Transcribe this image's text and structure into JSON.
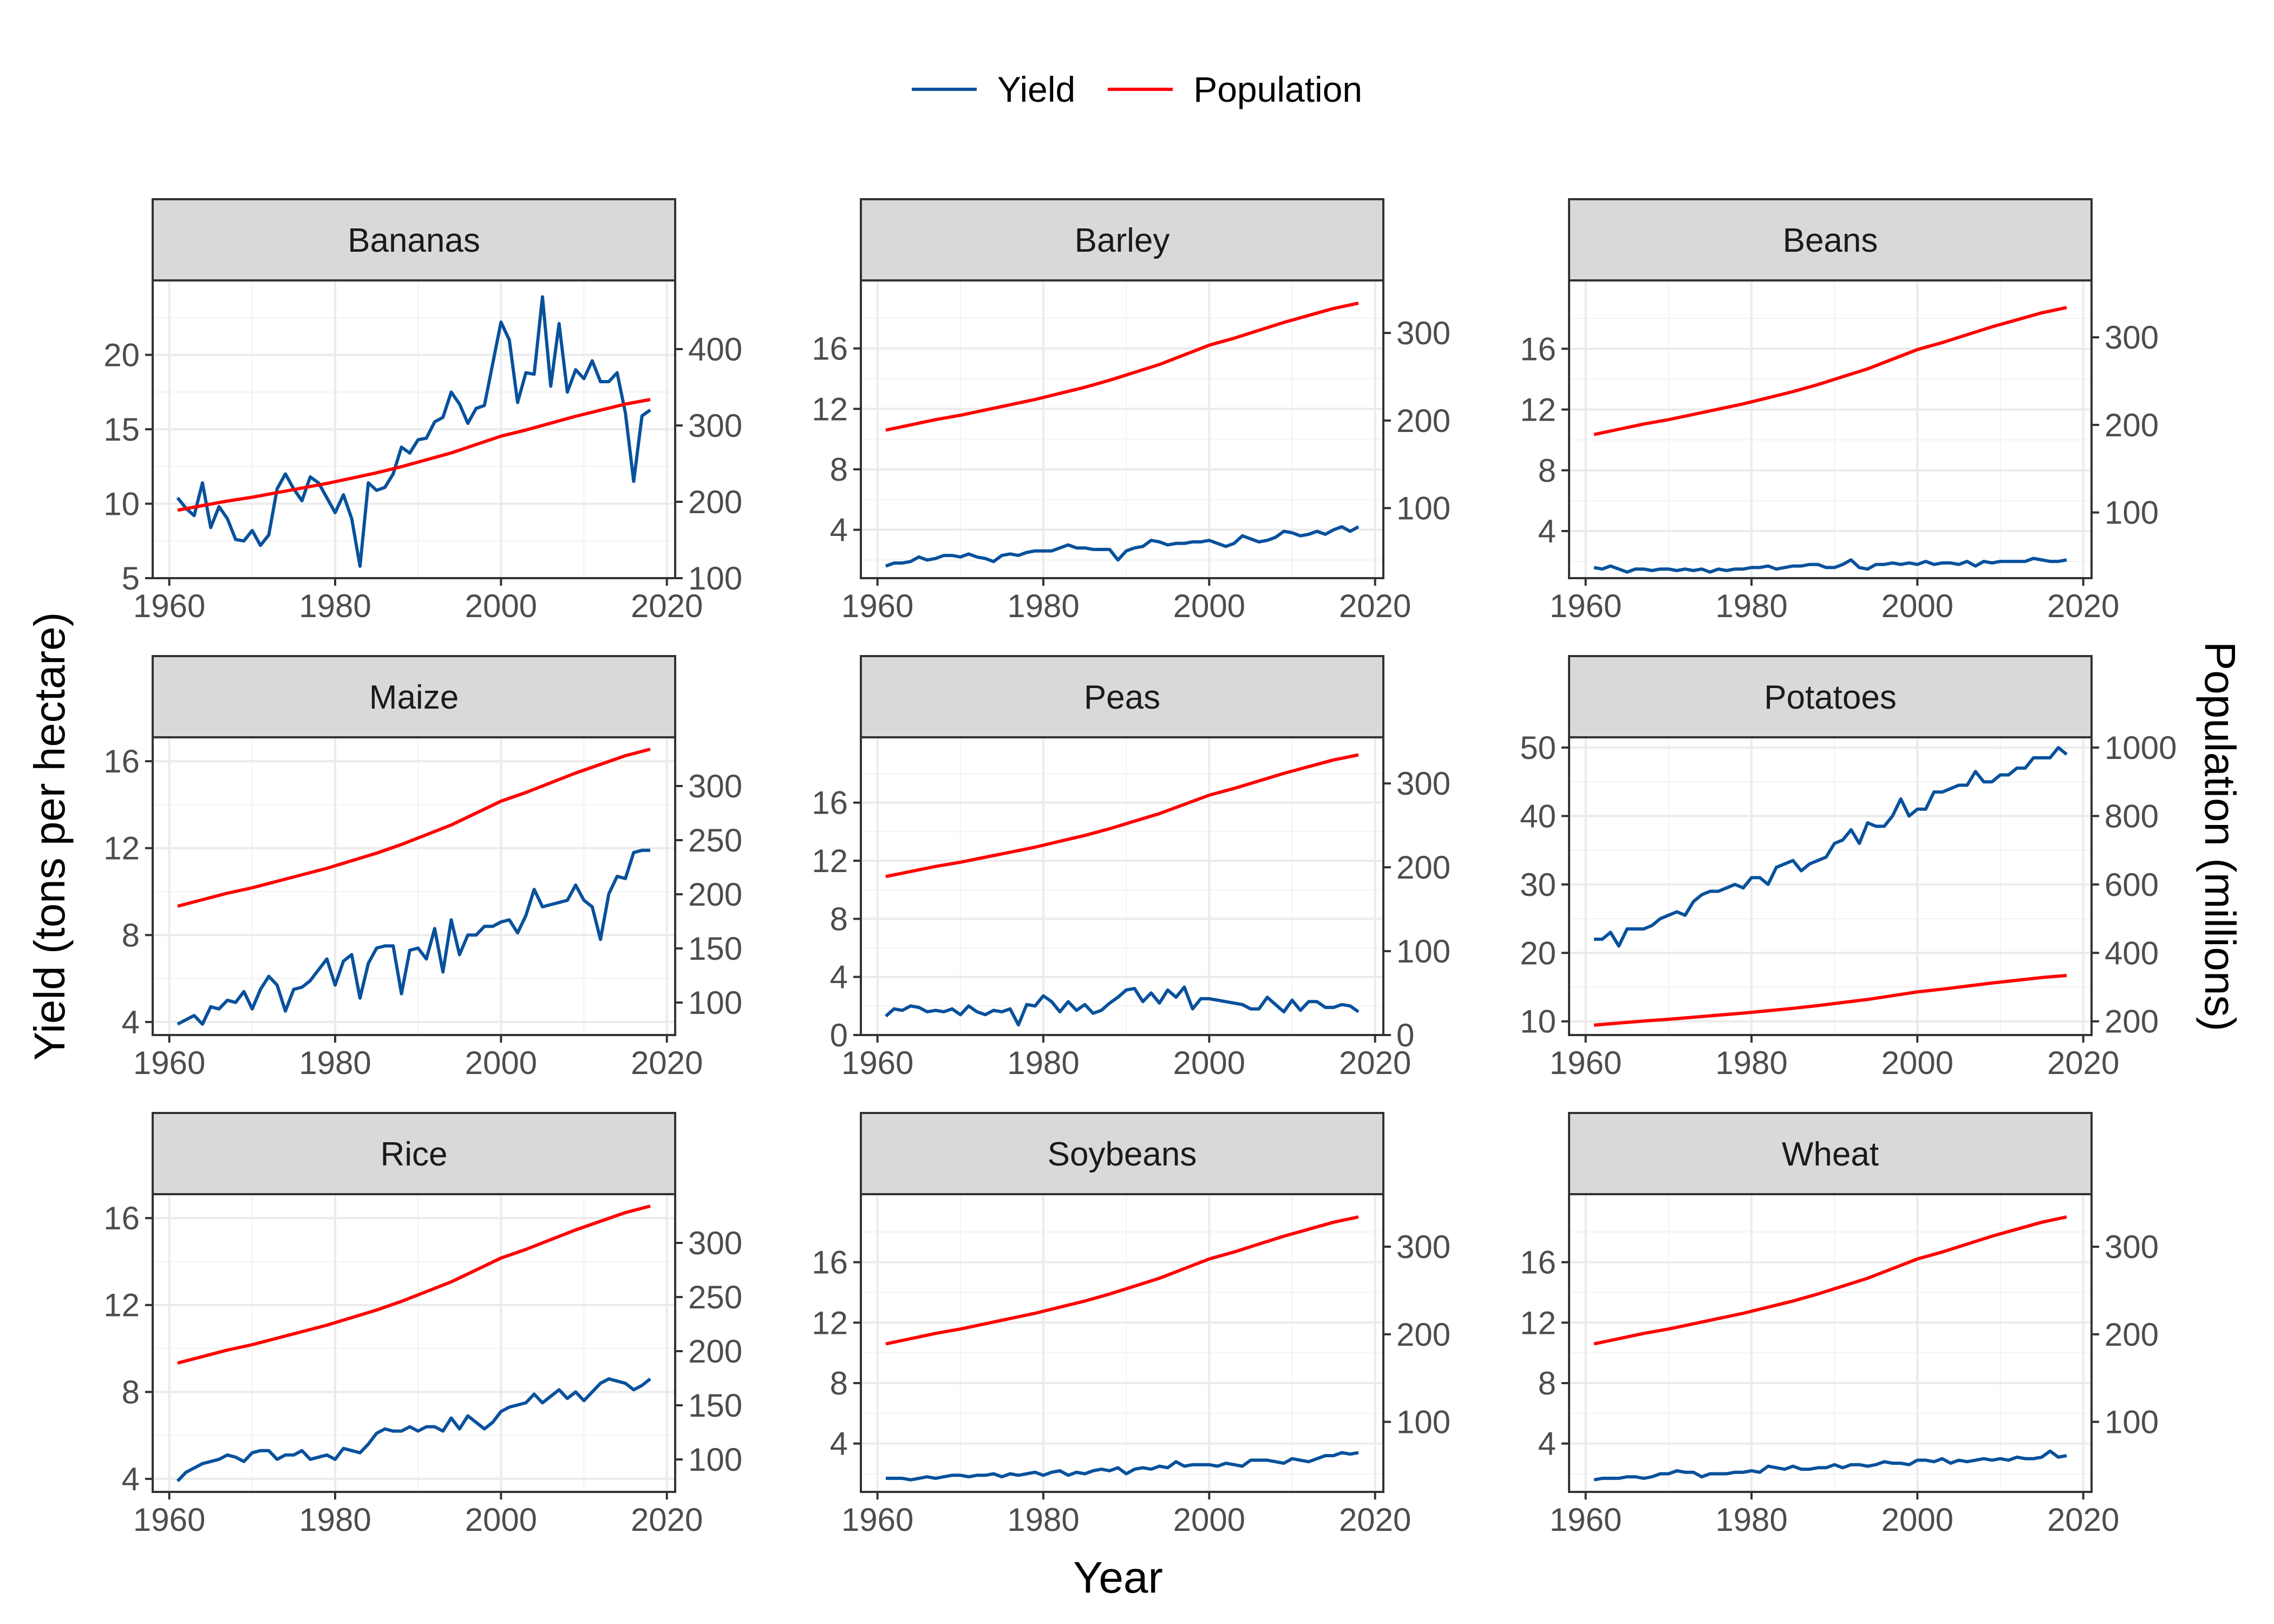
{
  "chart_data": {
    "type": "line",
    "layout": "facet-grid-3x3-dual-axis",
    "xlabel": "Year",
    "ylabel": "Yield (tons per hectare)",
    "y2label": "Population (millions)",
    "legend": {
      "position": "top",
      "entries": [
        {
          "name": "Yield",
          "color": "#08519c"
        },
        {
          "name": "Population",
          "color": "#ff0000"
        }
      ]
    },
    "grid": true,
    "xlim": [
      1958,
      2021
    ],
    "x_ticks": [
      1960,
      1980,
      2000,
      2020
    ],
    "population": {
      "x": [
        1961,
        1964,
        1967,
        1970,
        1973,
        1976,
        1979,
        1982,
        1985,
        1988,
        1991,
        1994,
        1997,
        2000,
        2003,
        2006,
        2009,
        2012,
        2015,
        2018
      ],
      "values": [
        189,
        195,
        201,
        206,
        212,
        218,
        224,
        231,
        238,
        246,
        255,
        264,
        275,
        286,
        294,
        303,
        312,
        320,
        328,
        334
      ]
    },
    "panels": [
      {
        "title": "Bananas",
        "ylim": [
          5,
          25
        ],
        "y_ticks": [
          5,
          10,
          15,
          20
        ],
        "y2lim": [
          100,
          490
        ],
        "y2_ticks": [
          100,
          200,
          300,
          400
        ],
        "yield": [
          10.4,
          9.7,
          9.2,
          11.4,
          8.4,
          9.8,
          9.0,
          7.6,
          7.5,
          8.2,
          7.2,
          7.9,
          11.0,
          12.0,
          11.0,
          10.2,
          11.8,
          11.4,
          10.4,
          9.4,
          10.6,
          9.0,
          5.8,
          11.4,
          10.9,
          11.1,
          12.0,
          13.8,
          13.4,
          14.3,
          14.4,
          15.5,
          15.8,
          17.5,
          16.7,
          15.4,
          16.4,
          16.6,
          19.4,
          22.2,
          21.0,
          16.8,
          18.8,
          18.7,
          23.9,
          17.9,
          22.1,
          17.5,
          19.0,
          18.4,
          19.6,
          18.2,
          18.2,
          18.8,
          16.1,
          11.5,
          15.9,
          16.3
        ]
      },
      {
        "title": "Barley",
        "ylim": [
          0.8,
          20.5
        ],
        "y_ticks": [
          4,
          8,
          12,
          16
        ],
        "y2lim": [
          20,
          360
        ],
        "y2_ticks": [
          100,
          200,
          300
        ],
        "yield": [
          1.6,
          1.8,
          1.8,
          1.9,
          2.2,
          2.0,
          2.1,
          2.3,
          2.3,
          2.2,
          2.4,
          2.2,
          2.1,
          1.9,
          2.3,
          2.4,
          2.3,
          2.5,
          2.6,
          2.6,
          2.6,
          2.8,
          3.0,
          2.8,
          2.8,
          2.7,
          2.7,
          2.7,
          2.0,
          2.6,
          2.8,
          2.9,
          3.3,
          3.2,
          3.0,
          3.1,
          3.1,
          3.2,
          3.2,
          3.3,
          3.1,
          2.9,
          3.1,
          3.6,
          3.4,
          3.2,
          3.3,
          3.5,
          3.9,
          3.8,
          3.6,
          3.7,
          3.9,
          3.7,
          4.0,
          4.2,
          3.9,
          4.2
        ]
      },
      {
        "title": "Beans",
        "ylim": [
          0.9,
          20.5
        ],
        "y_ticks": [
          4,
          8,
          12,
          16
        ],
        "y2lim": [
          25,
          365
        ],
        "y2_ticks": [
          100,
          200,
          300
        ],
        "yield": [
          1.6,
          1.5,
          1.7,
          1.5,
          1.3,
          1.5,
          1.5,
          1.4,
          1.5,
          1.5,
          1.4,
          1.5,
          1.4,
          1.5,
          1.3,
          1.5,
          1.4,
          1.5,
          1.5,
          1.6,
          1.6,
          1.7,
          1.5,
          1.6,
          1.7,
          1.7,
          1.8,
          1.8,
          1.6,
          1.6,
          1.8,
          2.1,
          1.6,
          1.5,
          1.8,
          1.8,
          1.9,
          1.8,
          1.9,
          1.8,
          2.0,
          1.8,
          1.9,
          1.9,
          1.8,
          2.0,
          1.7,
          2.0,
          1.9,
          2.0,
          2.0,
          2.0,
          2.0,
          2.2,
          2.1,
          2.0,
          2.0,
          2.1
        ]
      },
      {
        "title": "Maize",
        "ylim": [
          3.4,
          17.1
        ],
        "y_ticks": [
          4,
          8,
          12,
          16
        ],
        "y2lim": [
          70,
          345
        ],
        "y2_ticks": [
          100,
          150,
          200,
          250,
          300
        ],
        "yield": [
          3.9,
          4.1,
          4.3,
          3.9,
          4.7,
          4.6,
          5.0,
          4.9,
          5.4,
          4.6,
          5.5,
          6.1,
          5.7,
          4.5,
          5.5,
          5.6,
          5.9,
          6.4,
          6.9,
          5.7,
          6.8,
          7.1,
          5.1,
          6.7,
          7.4,
          7.5,
          7.5,
          5.3,
          7.3,
          7.4,
          6.9,
          8.3,
          6.3,
          8.7,
          7.1,
          8.0,
          8.0,
          8.4,
          8.4,
          8.6,
          8.7,
          8.1,
          8.9,
          10.1,
          9.3,
          9.4,
          9.5,
          9.6,
          10.3,
          9.6,
          9.3,
          7.8,
          9.9,
          10.7,
          10.6,
          11.8,
          11.9,
          11.9
        ]
      },
      {
        "title": "Peas",
        "ylim": [
          0,
          20.5
        ],
        "y_ticks": [
          0,
          4,
          8,
          12,
          16
        ],
        "y2lim": [
          0,
          355
        ],
        "y2_ticks": [
          0,
          100,
          200,
          300
        ],
        "yield": [
          1.3,
          1.8,
          1.7,
          2.0,
          1.9,
          1.6,
          1.7,
          1.6,
          1.8,
          1.4,
          2.0,
          1.6,
          1.4,
          1.7,
          1.6,
          1.8,
          0.7,
          2.1,
          2.0,
          2.7,
          2.3,
          1.6,
          2.3,
          1.7,
          2.1,
          1.5,
          1.7,
          2.2,
          2.6,
          3.1,
          3.2,
          2.3,
          2.9,
          2.2,
          3.1,
          2.6,
          3.3,
          1.8,
          2.5,
          2.5,
          2.4,
          2.3,
          2.2,
          2.1,
          1.8,
          1.8,
          2.6,
          2.1,
          1.6,
          2.4,
          1.7,
          2.3,
          2.3,
          1.9,
          1.9,
          2.1,
          2.0,
          1.6
        ]
      },
      {
        "title": "Potatoes",
        "ylim": [
          8,
          51.5
        ],
        "y_ticks": [
          10,
          20,
          30,
          40,
          50
        ],
        "y2lim": [
          160,
          1030
        ],
        "y2_ticks": [
          200,
          400,
          600,
          800,
          1000
        ],
        "yield": [
          22,
          22,
          23,
          21,
          23.5,
          23.5,
          23.5,
          24,
          25,
          25.5,
          26,
          25.5,
          27.5,
          28.5,
          29,
          29,
          29.5,
          30,
          29.5,
          31,
          31,
          30,
          32.5,
          33,
          33.5,
          32,
          33,
          33.5,
          34,
          36,
          36.5,
          38,
          36,
          39,
          38.5,
          38.5,
          40,
          42.5,
          40,
          41,
          41,
          43.5,
          43.5,
          44,
          44.5,
          44.5,
          46.5,
          45,
          45,
          46,
          46,
          47,
          47,
          48.5,
          48.5,
          48.5,
          50,
          49
        ]
      },
      {
        "title": "Rice",
        "ylim": [
          3.4,
          17.1
        ],
        "y_ticks": [
          4,
          8,
          12,
          16
        ],
        "y2lim": [
          70,
          345
        ],
        "y2_ticks": [
          100,
          150,
          200,
          250,
          300
        ],
        "yield": [
          3.9,
          4.3,
          4.5,
          4.7,
          4.8,
          4.9,
          5.1,
          5.0,
          4.8,
          5.2,
          5.3,
          5.3,
          4.9,
          5.1,
          5.1,
          5.3,
          4.9,
          5.0,
          5.1,
          4.9,
          5.4,
          5.3,
          5.2,
          5.6,
          6.1,
          6.3,
          6.2,
          6.2,
          6.4,
          6.2,
          6.4,
          6.4,
          6.2,
          6.8,
          6.3,
          6.9,
          6.6,
          6.3,
          6.6,
          7.1,
          7.3,
          7.4,
          7.5,
          7.9,
          7.5,
          7.8,
          8.1,
          7.7,
          8.0,
          7.6,
          8.0,
          8.4,
          8.6,
          8.5,
          8.4,
          8.1,
          8.3,
          8.6
        ]
      },
      {
        "title": "Soybeans",
        "ylim": [
          0.8,
          20.5
        ],
        "y_ticks": [
          4,
          8,
          12,
          16
        ],
        "y2lim": [
          20,
          360
        ],
        "y2_ticks": [
          100,
          200,
          300
        ],
        "yield": [
          1.7,
          1.7,
          1.7,
          1.6,
          1.7,
          1.8,
          1.7,
          1.8,
          1.9,
          1.9,
          1.8,
          1.9,
          1.9,
          2.0,
          1.8,
          2.0,
          1.9,
          2.0,
          2.1,
          1.9,
          2.1,
          2.2,
          1.9,
          2.1,
          2.0,
          2.2,
          2.3,
          2.2,
          2.4,
          2.0,
          2.3,
          2.4,
          2.3,
          2.5,
          2.4,
          2.8,
          2.5,
          2.6,
          2.6,
          2.6,
          2.5,
          2.7,
          2.6,
          2.5,
          2.9,
          2.9,
          2.9,
          2.8,
          2.7,
          3.0,
          2.9,
          2.8,
          3.0,
          3.2,
          3.2,
          3.4,
          3.3,
          3.4
        ]
      },
      {
        "title": "Wheat",
        "ylim": [
          0.8,
          20.5
        ],
        "y_ticks": [
          4,
          8,
          12,
          16
        ],
        "y2lim": [
          20,
          360
        ],
        "y2_ticks": [
          100,
          200,
          300
        ],
        "yield": [
          1.6,
          1.7,
          1.7,
          1.7,
          1.8,
          1.8,
          1.7,
          1.8,
          2.0,
          2.0,
          2.2,
          2.1,
          2.1,
          1.8,
          2.0,
          2.0,
          2.0,
          2.1,
          2.1,
          2.2,
          2.1,
          2.5,
          2.4,
          2.3,
          2.5,
          2.3,
          2.3,
          2.4,
          2.4,
          2.6,
          2.4,
          2.6,
          2.6,
          2.5,
          2.6,
          2.8,
          2.7,
          2.7,
          2.6,
          2.9,
          2.9,
          2.8,
          3.0,
          2.7,
          2.9,
          2.8,
          2.9,
          3.0,
          2.9,
          3.0,
          2.9,
          3.1,
          3.0,
          3.0,
          3.1,
          3.5,
          3.1,
          3.2
        ]
      }
    ]
  }
}
